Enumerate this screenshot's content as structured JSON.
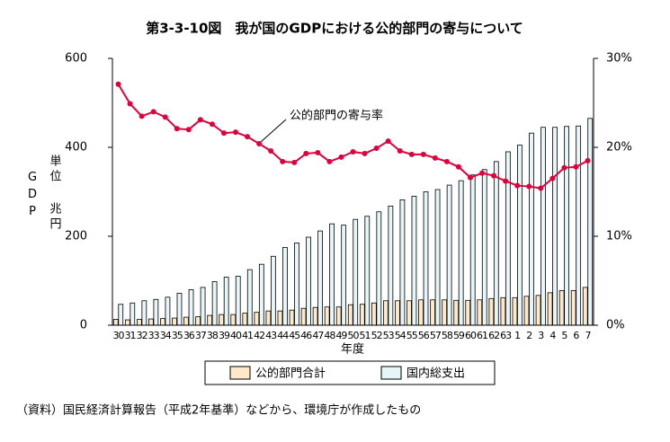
{
  "chart_data": {
    "type": "bar",
    "title": "第3-3-10図　我が国のGDPにおける公的部門の寄与について",
    "y_label": "GDP",
    "y_unit": "単位 兆円",
    "x_label": "年度",
    "annotation": "公的部門の寄与率",
    "source": "（資料）国民経済計算報告（平成2年基準）などから、環境庁が作成したもの",
    "categories": [
      "30",
      "31",
      "32",
      "33",
      "34",
      "35",
      "36",
      "37",
      "38",
      "39",
      "40",
      "41",
      "42",
      "43",
      "44",
      "45",
      "46",
      "47",
      "48",
      "49",
      "50",
      "51",
      "52",
      "53",
      "54",
      "55",
      "56",
      "57",
      "58",
      "59",
      "60",
      "61",
      "62",
      "63",
      "1",
      "2",
      "3",
      "4",
      "5",
      "6",
      "7"
    ],
    "series": [
      {
        "name": "公的部門合計",
        "color": "#fde8c8",
        "values": [
          13,
          12,
          13,
          14,
          15,
          16,
          18,
          19,
          22,
          24,
          24,
          27,
          29,
          32,
          32,
          34,
          38,
          40,
          41,
          41,
          46,
          47,
          50,
          55,
          55,
          55,
          57,
          57,
          57,
          56,
          56,
          57,
          60,
          62,
          62,
          65,
          67,
          73,
          78,
          78,
          85
        ]
      },
      {
        "name": "国内総支出",
        "color": "#e6f5f8",
        "values": [
          47,
          50,
          55,
          58,
          63,
          72,
          80,
          85,
          98,
          108,
          110,
          125,
          137,
          155,
          175,
          185,
          198,
          212,
          228,
          225,
          238,
          245,
          255,
          268,
          282,
          290,
          300,
          305,
          315,
          325,
          338,
          350,
          368,
          390,
          405,
          432,
          445,
          445,
          447,
          448,
          465
        ]
      },
      {
        "name": "公的部門の寄与率",
        "color": "#e0003c",
        "axis": "y2",
        "type": "line",
        "values": [
          27.1,
          24.9,
          23.5,
          24.0,
          23.4,
          22.1,
          22.0,
          23.1,
          22.6,
          21.6,
          21.7,
          21.2,
          20.4,
          19.6,
          18.4,
          18.3,
          19.3,
          19.4,
          18.4,
          18.9,
          19.5,
          19.3,
          19.9,
          20.7,
          19.6,
          19.2,
          19.2,
          18.8,
          18.4,
          17.8,
          16.6,
          17.1,
          16.8,
          16.2,
          15.7,
          15.6,
          15.4,
          16.5,
          17.7,
          17.8,
          18.5
        ]
      }
    ],
    "ylim": [
      0,
      600
    ],
    "yticks": [
      0,
      200,
      400,
      600
    ],
    "y2lim": [
      0,
      30
    ],
    "y2ticks": [
      {
        "value": 0,
        "label": "0%"
      },
      {
        "value": 10,
        "label": "10%"
      },
      {
        "value": 20,
        "label": "20%"
      },
      {
        "value": 30,
        "label": "30%"
      }
    ],
    "grid": false
  }
}
